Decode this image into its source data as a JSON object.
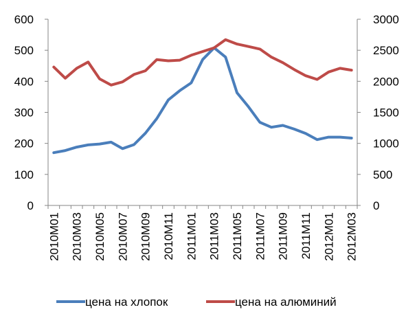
{
  "chart_data": {
    "type": "line",
    "x": [
      "2010M01",
      "2010M02",
      "2010M03",
      "2010M04",
      "2010M05",
      "2010M06",
      "2010M07",
      "2010M08",
      "2010M09",
      "2010M10",
      "2010M11",
      "2010M12",
      "2011M01",
      "2011M02",
      "2011M03",
      "2011M04",
      "2011M05",
      "2011M06",
      "2011M07",
      "2011M08",
      "2011M09",
      "2011M10",
      "2011M11",
      "2011M12",
      "2012M01",
      "2012M02",
      "2012M03"
    ],
    "x_tick_labels": [
      "2010M01",
      "2010M03",
      "2010M05",
      "2010M07",
      "2010M09",
      "2010M11",
      "2011M01",
      "2011M03",
      "2011M05",
      "2011M07",
      "2011M09",
      "2011M11",
      "2012M01",
      "2012M03"
    ],
    "y_left": {
      "ylim": [
        0,
        600
      ],
      "ticks": [
        "0",
        "100",
        "200",
        "300",
        "400",
        "500",
        "600"
      ]
    },
    "y_right": {
      "ylim": [
        0,
        3000
      ],
      "ticks": [
        "0",
        "500",
        "1000",
        "1500",
        "2000",
        "2500",
        "3000"
      ]
    },
    "series": [
      {
        "name": "цена на хлопок",
        "axis": "left",
        "color": "#4a7ebb",
        "values": [
          170,
          177,
          188,
          195,
          198,
          204,
          183,
          196,
          233,
          280,
          340,
          370,
          395,
          470,
          508,
          478,
          363,
          318,
          268,
          252,
          258,
          246,
          232,
          212,
          220,
          220,
          217
        ]
      },
      {
        "name": "цена на алюминий",
        "axis": "right",
        "color": "#be4b48",
        "values": [
          2230,
          2050,
          2210,
          2310,
          2040,
          1940,
          1990,
          2110,
          2170,
          2350,
          2330,
          2340,
          2420,
          2480,
          2540,
          2670,
          2600,
          2560,
          2520,
          2390,
          2300,
          2190,
          2090,
          2030,
          2150,
          2210,
          2180
        ]
      }
    ],
    "legend_position": "bottom",
    "grid": false
  }
}
